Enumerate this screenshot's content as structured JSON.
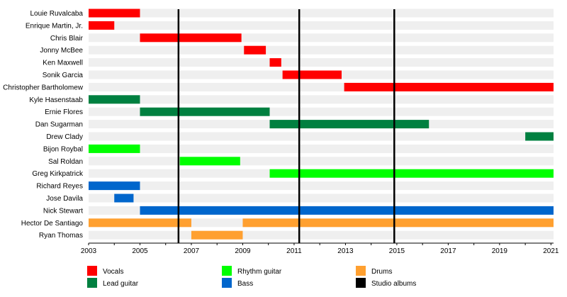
{
  "chart_data": {
    "type": "timeline",
    "xlim": [
      2003,
      2021.1
    ],
    "x_ticks": [
      "2003",
      "2005",
      "2007",
      "2009",
      "2011",
      "2013",
      "2015",
      "2017",
      "2019",
      "2021"
    ],
    "grid": "horizontal row bands",
    "legend_position": "bottom",
    "members": [
      "Louie Ruvalcaba",
      "Enrique Martin, Jr.",
      "Chris Blair",
      "Jonny McBee",
      "Ken Maxwell",
      "Sonik Garcia",
      "Christopher Bartholomew",
      "Kyle Hasenstaab",
      "Ernie Flores",
      "Dan Sugarman",
      "Drew Clady",
      "Bijon Roybal",
      "Sal Roldan",
      "Greg Kirkpatrick",
      "Richard Reyes",
      "Jose Davila",
      "Nick Stewart",
      "Hector De Santiago",
      "Ryan Thomas"
    ],
    "roles": [
      {
        "key": "vocals",
        "label": "Vocals",
        "color": "#ff0000"
      },
      {
        "key": "lead",
        "label": "Lead guitar",
        "color": "#008040"
      },
      {
        "key": "rhythm",
        "label": "Rhythm guitar",
        "color": "#00ff00"
      },
      {
        "key": "bass",
        "label": "Bass",
        "color": "#0066cc"
      },
      {
        "key": "drums",
        "label": "Drums",
        "color": "#ffa030"
      },
      {
        "key": "albums",
        "label": "Studio albums",
        "color": "#000000"
      }
    ],
    "spans": [
      {
        "row": 0,
        "role": "vocals",
        "start": 2003,
        "end": 2005
      },
      {
        "row": 1,
        "role": "vocals",
        "start": 2003,
        "end": 2004
      },
      {
        "row": 2,
        "role": "vocals",
        "start": 2005,
        "end": 2008.95
      },
      {
        "row": 3,
        "role": "vocals",
        "start": 2009.05,
        "end": 2009.9
      },
      {
        "row": 4,
        "role": "vocals",
        "start": 2010.05,
        "end": 2010.5
      },
      {
        "row": 5,
        "role": "vocals",
        "start": 2010.55,
        "end": 2012.85
      },
      {
        "row": 6,
        "role": "vocals",
        "start": 2012.95,
        "end": 2021.1
      },
      {
        "row": 7,
        "role": "lead",
        "start": 2003,
        "end": 2005
      },
      {
        "row": 8,
        "role": "lead",
        "start": 2005,
        "end": 2010.05
      },
      {
        "row": 9,
        "role": "lead",
        "start": 2010.05,
        "end": 2016.25
      },
      {
        "row": 10,
        "role": "lead",
        "start": 2020,
        "end": 2021.1
      },
      {
        "row": 11,
        "role": "rhythm",
        "start": 2003,
        "end": 2005
      },
      {
        "row": 12,
        "role": "rhythm",
        "start": 2006.55,
        "end": 2008.9
      },
      {
        "row": 13,
        "role": "rhythm",
        "start": 2010.05,
        "end": 2021.1
      },
      {
        "row": 14,
        "role": "bass",
        "start": 2003,
        "end": 2005
      },
      {
        "row": 15,
        "role": "bass",
        "start": 2004,
        "end": 2004.75
      },
      {
        "row": 16,
        "role": "bass",
        "start": 2005,
        "end": 2021.1
      },
      {
        "row": 17,
        "role": "drums",
        "start": 2003,
        "end": 2007
      },
      {
        "row": 17,
        "role": "drums",
        "start": 2009,
        "end": 2021.1
      },
      {
        "row": 18,
        "role": "drums",
        "start": 2007,
        "end": 2009
      }
    ],
    "albums": [
      2006.5,
      2011.2,
      2014.9
    ]
  }
}
